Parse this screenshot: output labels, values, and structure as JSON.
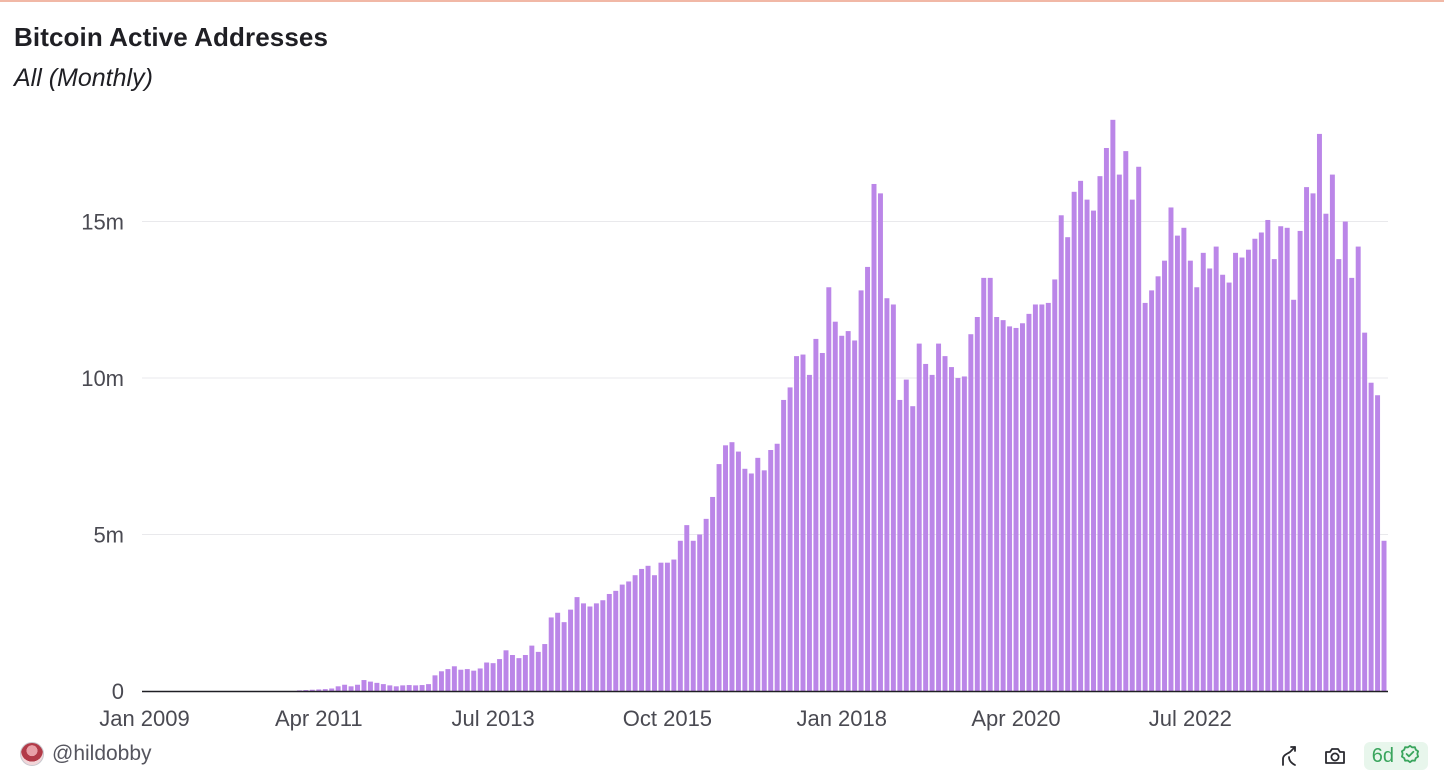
{
  "header": {
    "title": "Bitcoin Active Addresses",
    "subtitle": "All (Monthly)"
  },
  "footer": {
    "author": "@hildobby",
    "freshness": "6d",
    "icons": [
      "avatar",
      "fork-icon",
      "camera-icon",
      "check-circle-icon"
    ]
  },
  "colors": {
    "bar": "#bb86e8",
    "grid": "#e9e9ec",
    "axis": "#1f1f24",
    "tick_text": "#4a4a52",
    "badge_green": "#3aa55d"
  },
  "chart_data": {
    "type": "bar",
    "title": "Bitcoin Active Addresses",
    "subtitle": "All (Monthly)",
    "x_start": "Jan 2009",
    "interval": "monthly",
    "x_tick_labels": [
      "Jan 2009",
      "Apr 2011",
      "Jul 2013",
      "Oct 2015",
      "Jan 2018",
      "Apr 2020",
      "Jul 2022"
    ],
    "y_ticks": [
      0,
      5000000,
      10000000,
      15000000
    ],
    "y_tick_labels": [
      "0",
      "5m",
      "10m",
      "15m"
    ],
    "ylim": [
      0,
      18500000
    ],
    "grid": true,
    "legend": "none",
    "series": [
      {
        "values": [
          0,
          0,
          0,
          0,
          0,
          0,
          0,
          0,
          0,
          0,
          0,
          0,
          0,
          0,
          0,
          0,
          0,
          0,
          0,
          0,
          0,
          0,
          0,
          0,
          20000,
          30000,
          40000,
          50000,
          60000,
          80000,
          150000,
          200000,
          150000,
          200000,
          350000,
          300000,
          260000,
          220000,
          180000,
          150000,
          180000,
          190000,
          180000,
          190000,
          220000,
          500000,
          630000,
          700000,
          790000,
          680000,
          700000,
          650000,
          720000,
          910000,
          890000,
          1020000,
          1300000,
          1150000,
          1050000,
          1150000,
          1450000,
          1250000,
          1500000,
          2350000,
          2500000,
          2200000,
          2600000,
          3000000,
          2800000,
          2700000,
          2800000,
          2900000,
          3100000,
          3200000,
          3400000,
          3500000,
          3700000,
          3900000,
          4000000,
          3700000,
          4100000,
          4100000,
          4200000,
          4800000,
          5300000,
          4800000,
          5000000,
          5500000,
          6200000,
          7250000,
          7850000,
          7950000,
          7650000,
          7100000,
          6950000,
          7450000,
          7050000,
          7700000,
          7900000,
          9300000,
          9700000,
          10700000,
          10750000,
          10100000,
          11250000,
          10800000,
          12900000,
          11800000,
          11350000,
          11500000,
          11200000,
          12800000,
          13550000,
          16200000,
          15900000,
          12550000,
          12350000,
          9300000,
          9950000,
          9100000,
          11100000,
          10450000,
          10100000,
          11100000,
          10700000,
          10350000,
          10000000,
          10050000,
          11400000,
          11950000,
          13200000,
          13200000,
          11950000,
          11850000,
          11650000,
          11600000,
          11750000,
          12050000,
          12350000,
          12350000,
          12400000,
          13150000,
          15200000,
          14500000,
          15950000,
          16300000,
          15700000,
          15350000,
          16450000,
          17350000,
          18250000,
          16500000,
          17250000,
          15700000,
          16750000,
          12400000,
          12800000,
          13250000,
          13750000,
          15450000,
          14550000,
          14800000,
          13750000,
          12900000,
          14000000,
          13500000,
          14200000,
          13300000,
          13050000,
          14000000,
          13850000,
          14100000,
          14450000,
          14650000,
          15050000,
          13800000,
          14850000,
          14800000,
          12500000,
          14700000,
          16100000,
          15900000,
          17800000,
          15250000,
          16500000,
          13800000,
          15000000,
          13200000,
          14200000,
          11450000,
          9850000,
          9450000,
          4800000
        ]
      }
    ]
  }
}
